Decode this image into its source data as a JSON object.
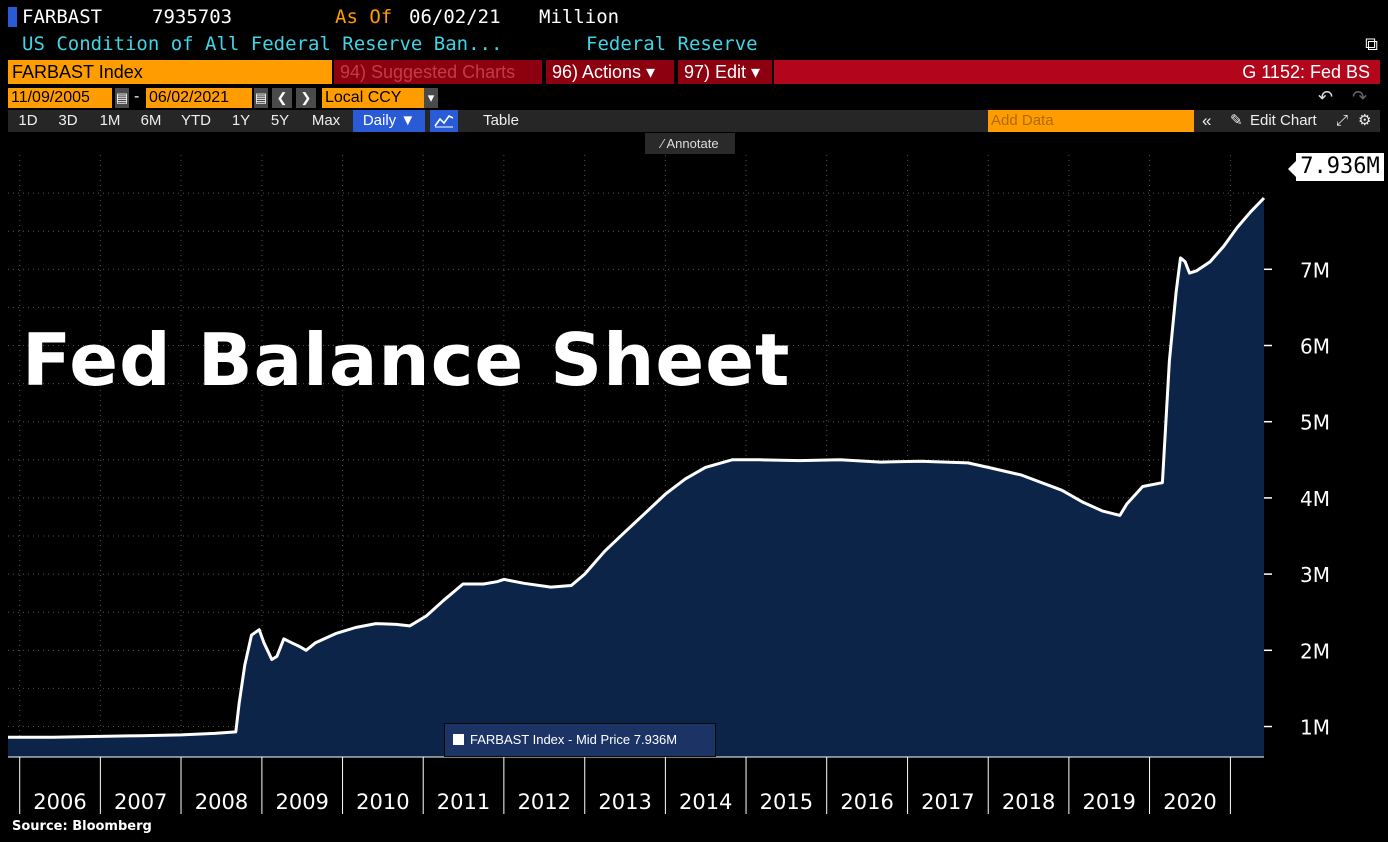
{
  "header": {
    "ticker": "FARBAST",
    "value": "7935703",
    "as_of_label": "As Of",
    "as_of_date": "06/02/21",
    "unit": "Million",
    "description": "US Condition of All Federal Reserve Ban...",
    "source": "Federal Reserve",
    "security": "FARBAST Index",
    "suggested_charts": "94) Suggested Charts",
    "actions": "96) Actions ▾",
    "edit": "97) Edit ▾",
    "function": "G 1152: Fed BS",
    "colors": {
      "accent_orange": "#ff9d00",
      "toolbar_red": "#b3061c",
      "selected_blue": "#2a5bd7"
    }
  },
  "daterange": {
    "start": "11/09/2005",
    "sep": "-",
    "end": "06/02/2021",
    "currency": "Local CCY"
  },
  "toolbar": {
    "periods": [
      "1D",
      "3D",
      "1M",
      "6M",
      "YTD",
      "1Y",
      "5Y",
      "Max"
    ],
    "frequency": "Daily ▼",
    "table": "Table",
    "add_data_placeholder": "Add Data",
    "edit_chart": "Edit Chart",
    "annotate": "Annotate"
  },
  "overlay_title": "Fed Balance Sheet",
  "source_note": "Source: Bloomberg",
  "chart_data": {
    "type": "area",
    "series": [
      {
        "name": "FARBAST Index - Mid Price 7.936M",
        "color": "#ffffff",
        "fill": "#0c2448",
        "points": [
          [
            "2005-11-09",
            0.86
          ],
          [
            "2006-06-01",
            0.86
          ],
          [
            "2007-01-01",
            0.87
          ],
          [
            "2007-07-01",
            0.88
          ],
          [
            "2008-01-01",
            0.89
          ],
          [
            "2008-06-01",
            0.91
          ],
          [
            "2008-09-05",
            0.93
          ],
          [
            "2008-09-20",
            1.3
          ],
          [
            "2008-10-15",
            1.8
          ],
          [
            "2008-11-15",
            2.2
          ],
          [
            "2008-12-20",
            2.27
          ],
          [
            "2009-01-10",
            2.1
          ],
          [
            "2009-02-15",
            1.88
          ],
          [
            "2009-03-10",
            1.92
          ],
          [
            "2009-04-10",
            2.15
          ],
          [
            "2009-05-15",
            2.1
          ],
          [
            "2009-06-20",
            2.05
          ],
          [
            "2009-07-20",
            2.0
          ],
          [
            "2009-09-01",
            2.1
          ],
          [
            "2009-12-01",
            2.22
          ],
          [
            "2010-03-01",
            2.3
          ],
          [
            "2010-06-01",
            2.35
          ],
          [
            "2010-09-01",
            2.34
          ],
          [
            "2010-11-01",
            2.32
          ],
          [
            "2011-01-15",
            2.45
          ],
          [
            "2011-04-01",
            2.65
          ],
          [
            "2011-06-30",
            2.87
          ],
          [
            "2011-10-01",
            2.87
          ],
          [
            "2011-12-01",
            2.9
          ],
          [
            "2012-01-01",
            2.93
          ],
          [
            "2012-04-01",
            2.88
          ],
          [
            "2012-08-01",
            2.83
          ],
          [
            "2012-11-01",
            2.85
          ],
          [
            "2013-01-01",
            3.0
          ],
          [
            "2013-04-01",
            3.3
          ],
          [
            "2013-07-01",
            3.55
          ],
          [
            "2013-10-01",
            3.8
          ],
          [
            "2014-01-01",
            4.05
          ],
          [
            "2014-04-01",
            4.25
          ],
          [
            "2014-07-01",
            4.4
          ],
          [
            "2014-10-30",
            4.5
          ],
          [
            "2015-03-01",
            4.5
          ],
          [
            "2015-09-01",
            4.49
          ],
          [
            "2016-03-01",
            4.5
          ],
          [
            "2016-09-01",
            4.47
          ],
          [
            "2017-03-01",
            4.48
          ],
          [
            "2017-10-01",
            4.46
          ],
          [
            "2018-01-01",
            4.4
          ],
          [
            "2018-06-01",
            4.3
          ],
          [
            "2018-12-01",
            4.1
          ],
          [
            "2019-03-01",
            3.95
          ],
          [
            "2019-06-01",
            3.83
          ],
          [
            "2019-08-20",
            3.77
          ],
          [
            "2019-09-20",
            3.92
          ],
          [
            "2019-12-01",
            4.15
          ],
          [
            "2020-02-28",
            4.2
          ],
          [
            "2020-03-15",
            5.0
          ],
          [
            "2020-03-31",
            5.8
          ],
          [
            "2020-04-30",
            6.7
          ],
          [
            "2020-05-20",
            7.15
          ],
          [
            "2020-06-10",
            7.1
          ],
          [
            "2020-06-30",
            6.95
          ],
          [
            "2020-08-01",
            6.98
          ],
          [
            "2020-10-01",
            7.1
          ],
          [
            "2020-12-01",
            7.3
          ],
          [
            "2021-02-01",
            7.55
          ],
          [
            "2021-04-01",
            7.75
          ],
          [
            "2021-06-02",
            7.936
          ]
        ]
      }
    ],
    "x_tick_labels": [
      "2006",
      "2007",
      "2008",
      "2009",
      "2010",
      "2011",
      "2012",
      "2013",
      "2014",
      "2015",
      "2016",
      "2017",
      "2018",
      "2019",
      "2020"
    ],
    "y_tick_labels": [
      "1M",
      "2M",
      "3M",
      "4M",
      "5M",
      "6M",
      "7M"
    ],
    "y_ticks": [
      1,
      2,
      3,
      4,
      5,
      6,
      7
    ],
    "ylim": [
      0.6,
      8.5
    ],
    "xlim": [
      "2005-11-09",
      "2021-06-02"
    ],
    "last_value_label": "7.936M",
    "grid": true,
    "legend_position": "bottom-center"
  }
}
